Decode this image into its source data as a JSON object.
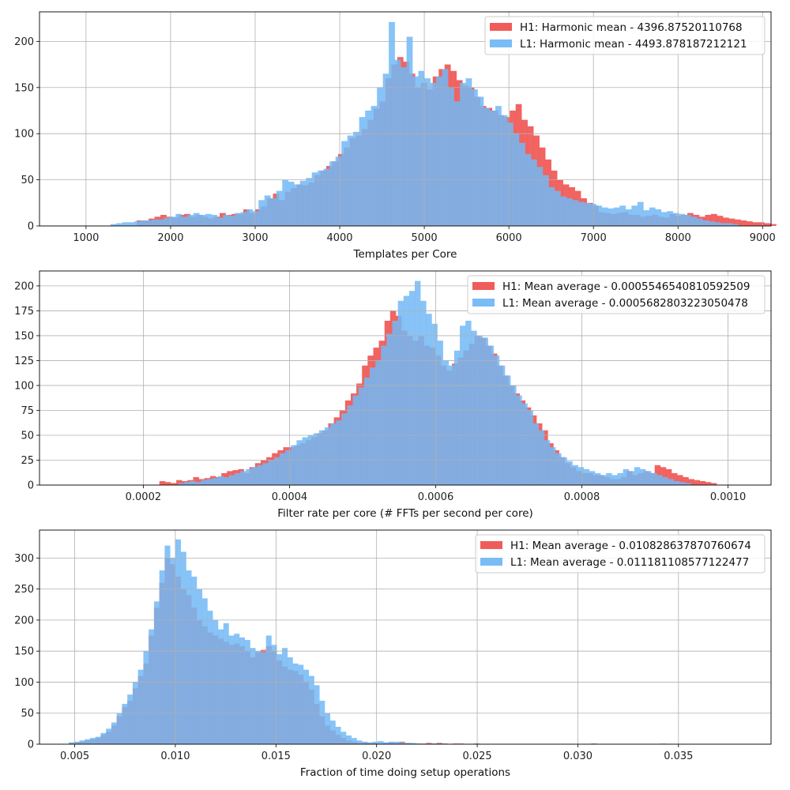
{
  "chart_data": [
    {
      "type": "bar",
      "xlabel": "Templates per Core",
      "ylabel": "",
      "xlim": [
        450,
        9100
      ],
      "ylim": [
        0,
        232
      ],
      "xticks": [
        1000,
        2000,
        3000,
        4000,
        5000,
        6000,
        7000,
        8000,
        9000
      ],
      "xtick_labels": [
        "1000",
        "2000",
        "3000",
        "4000",
        "5000",
        "6000",
        "7000",
        "8000",
        "9000"
      ],
      "yticks": [
        0,
        50,
        100,
        150,
        200
      ],
      "ytick_labels": [
        "0",
        "50",
        "100",
        "150",
        "200"
      ],
      "grid": true,
      "legend_position": "top-right",
      "series": [
        {
          "name": "H1: Harmonic mean  - 4396.87520110768",
          "color": "#ef5350",
          "bin_start": 1600,
          "bin_width": 70,
          "values": [
            6,
            6,
            8,
            10,
            12,
            10,
            9,
            12,
            13,
            10,
            12,
            10,
            8,
            10,
            14,
            12,
            13,
            13,
            18,
            14,
            18,
            21,
            30,
            35,
            28,
            37,
            41,
            45,
            44,
            47,
            55,
            60,
            65,
            70,
            78,
            85,
            95,
            98,
            105,
            115,
            127,
            135,
            160,
            175,
            183,
            178,
            165,
            150,
            155,
            148,
            162,
            170,
            175,
            168,
            158,
            152,
            150,
            140,
            130,
            128,
            125,
            120,
            118,
            125,
            132,
            115,
            108,
            98,
            85,
            72,
            60,
            50,
            45,
            42,
            38,
            30,
            25,
            22,
            15,
            14,
            13,
            14,
            15,
            12,
            12,
            10,
            11,
            12,
            10,
            9,
            13,
            11,
            12,
            14,
            12,
            10,
            12,
            13,
            11,
            9,
            8,
            7,
            6,
            5,
            4,
            4,
            3,
            2
          ]
        },
        {
          "name": "L1: Harmonic mean  - 4493.878187212121",
          "color": "#72b8f6",
          "bin_start": 1290,
          "bin_width": 70,
          "values": [
            2,
            3,
            4,
            4,
            5,
            6,
            6,
            7,
            7,
            9,
            10,
            13,
            10,
            12,
            14,
            12,
            13,
            12,
            9,
            12,
            11,
            14,
            15,
            18,
            16,
            28,
            33,
            30,
            38,
            50,
            48,
            45,
            49,
            52,
            58,
            60,
            62,
            70,
            75,
            92,
            98,
            102,
            118,
            125,
            130,
            150,
            165,
            221,
            180,
            172,
            205,
            162,
            168,
            160,
            155,
            162,
            170,
            150,
            135,
            155,
            160,
            148,
            140,
            128,
            125,
            130,
            120,
            112,
            100,
            90,
            78,
            72,
            64,
            55,
            42,
            38,
            32,
            30,
            28,
            26,
            25,
            24,
            22,
            20,
            19,
            20,
            22,
            18,
            22,
            26,
            17,
            20,
            18,
            15,
            16,
            14,
            13,
            12,
            10,
            8,
            6,
            5,
            4,
            3,
            3,
            2
          ]
        }
      ]
    },
    {
      "type": "bar",
      "xlabel": "Filter rate per core (# FFTs per second per core)",
      "ylabel": "",
      "xlim": [
        5.8e-05,
        0.0010588
      ],
      "ylim": [
        0,
        215
      ],
      "xticks": [
        0.0002,
        0.0004,
        0.0006,
        0.0008,
        0.001
      ],
      "xtick_labels": [
        "0.0002",
        "0.0004",
        "0.0006",
        "0.0008",
        "0.0010"
      ],
      "yticks": [
        0,
        25,
        50,
        75,
        100,
        125,
        150,
        175,
        200
      ],
      "ytick_labels": [
        "0",
        "25",
        "50",
        "75",
        "100",
        "125",
        "150",
        "175",
        "200"
      ],
      "grid": true,
      "legend_position": "top-right",
      "series": [
        {
          "name": "H1: Mean average - 0.0005546540810592509",
          "color": "#ef5350",
          "bin_start": 0.000222,
          "bin_width": 7.7e-06,
          "values": [
            4,
            3,
            2,
            5,
            4,
            5,
            8,
            6,
            7,
            9,
            8,
            12,
            14,
            15,
            16,
            12,
            18,
            22,
            25,
            28,
            32,
            35,
            38,
            38,
            40,
            42,
            45,
            48,
            52,
            55,
            62,
            68,
            75,
            85,
            92,
            102,
            120,
            130,
            138,
            145,
            165,
            175,
            170,
            155,
            150,
            145,
            150,
            140,
            138,
            130,
            120,
            115,
            122,
            128,
            135,
            142,
            150,
            148,
            140,
            132,
            120,
            110,
            100,
            92,
            85,
            78,
            70,
            62,
            55,
            42,
            35,
            28,
            22,
            18,
            14,
            12,
            12,
            10,
            10,
            8,
            6,
            6,
            8,
            14,
            10,
            12,
            14,
            12,
            20,
            18,
            16,
            12,
            10,
            8,
            6,
            5,
            4,
            3,
            2
          ]
        },
        {
          "name": "L1: Mean average - 0.0005682803223050478",
          "color": "#72b8f6",
          "bin_start": 0.000248,
          "bin_width": 7.7e-06,
          "values": [
            2,
            3,
            4,
            3,
            5,
            6,
            7,
            9,
            8,
            10,
            12,
            14,
            16,
            18,
            20,
            22,
            25,
            28,
            32,
            35,
            40,
            45,
            48,
            50,
            52,
            55,
            58,
            62,
            65,
            72,
            80,
            90,
            98,
            108,
            118,
            125,
            140,
            152,
            165,
            185,
            190,
            195,
            205,
            185,
            172,
            162,
            145,
            125,
            120,
            135,
            160,
            165,
            155,
            150,
            148,
            140,
            130,
            120,
            110,
            100,
            90,
            82,
            75,
            62,
            55,
            45,
            38,
            32,
            28,
            24,
            20,
            18,
            16,
            14,
            12,
            10,
            12,
            10,
            12,
            16,
            14,
            18,
            16,
            14,
            12,
            10,
            8,
            6,
            4,
            3,
            2
          ]
        }
      ]
    },
    {
      "type": "bar",
      "xlabel": "Fraction of time doing setup operations",
      "ylabel": "",
      "xlim": [
        0.00325,
        0.0396
      ],
      "ylim": [
        0,
        345
      ],
      "xticks": [
        0.005,
        0.01,
        0.015,
        0.02,
        0.025,
        0.03,
        0.035
      ],
      "xtick_labels": [
        "0.005",
        "0.010",
        "0.015",
        "0.020",
        "0.025",
        "0.030",
        "0.035"
      ],
      "yticks": [
        0,
        50,
        100,
        150,
        200,
        250,
        300
      ],
      "ytick_labels": [
        "0",
        "50",
        "100",
        "150",
        "200",
        "250",
        "300"
      ],
      "grid": true,
      "legend_position": "top-right",
      "series": [
        {
          "name": "H1: Mean average - 0.010828637870760674",
          "color": "#ef5350",
          "bin_start": 0.0047,
          "bin_width": 0.000265,
          "values": [
            2,
            3,
            4,
            6,
            8,
            10,
            15,
            20,
            30,
            45,
            60,
            70,
            90,
            110,
            130,
            175,
            220,
            260,
            300,
            290,
            270,
            250,
            240,
            220,
            200,
            190,
            180,
            175,
            170,
            165,
            160,
            162,
            158,
            150,
            140,
            148,
            152,
            158,
            150,
            135,
            125,
            120,
            118,
            112,
            100,
            88,
            65,
            45,
            30,
            22,
            15,
            10,
            6,
            4,
            2,
            3,
            2,
            2,
            1,
            2,
            3,
            2,
            4,
            2,
            1,
            1,
            0,
            2,
            1,
            2,
            1,
            0,
            1,
            1,
            0,
            0,
            1,
            0,
            0,
            0,
            0,
            0,
            0,
            0,
            0,
            0,
            0,
            0,
            0,
            0,
            0,
            0,
            0,
            0,
            0,
            0,
            0,
            0,
            1
          ]
        },
        {
          "name": "L1: Mean average - 0.011181108577122477",
          "color": "#72b8f6",
          "bin_start": 0.0047,
          "bin_width": 0.000265,
          "values": [
            3,
            4,
            6,
            8,
            10,
            12,
            18,
            25,
            35,
            50,
            65,
            80,
            100,
            120,
            150,
            185,
            230,
            280,
            320,
            300,
            330,
            310,
            280,
            270,
            250,
            235,
            215,
            200,
            185,
            195,
            175,
            178,
            172,
            168,
            155,
            150,
            148,
            175,
            160,
            145,
            155,
            140,
            130,
            128,
            120,
            110,
            95,
            70,
            50,
            38,
            28,
            20,
            14,
            10,
            6,
            4,
            3,
            4,
            5,
            3,
            4,
            4,
            3,
            2,
            2,
            1,
            1,
            1,
            1,
            1,
            0,
            0,
            0,
            0,
            0,
            0,
            0,
            0,
            0,
            0,
            0,
            0,
            0,
            0,
            0,
            0,
            0,
            0,
            0,
            0,
            0,
            0,
            0,
            0,
            0,
            0,
            0,
            0,
            0,
            0,
            0,
            0,
            0,
            0,
            0,
            0,
            0,
            0,
            0,
            0,
            0,
            1
          ]
        }
      ]
    }
  ]
}
